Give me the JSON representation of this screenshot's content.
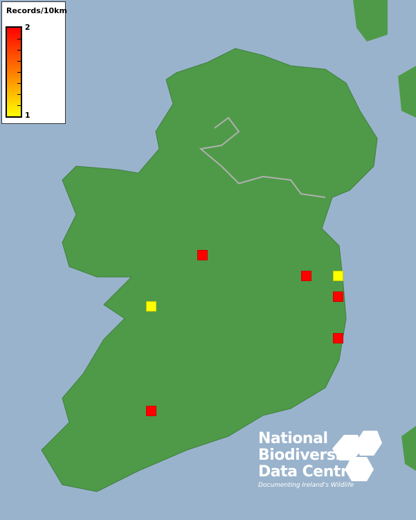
{
  "legend": {
    "title": "Records/10km",
    "max_label": "2",
    "min_label": "1",
    "colors": {
      "max": "#ff0000",
      "min": "#ffff00"
    }
  },
  "records": [
    {
      "value": 2,
      "color": "#ff0000"
    },
    {
      "value": 2,
      "color": "#ff0000"
    },
    {
      "value": 2,
      "color": "#ff0000"
    },
    {
      "value": 2,
      "color": "#ff0000"
    },
    {
      "value": 2,
      "color": "#ff0000"
    },
    {
      "value": 1,
      "color": "#ffff00"
    },
    {
      "value": 1,
      "color": "#ffff00"
    }
  ],
  "logo": {
    "line1": "National",
    "line2": "Biodiversity",
    "line3": "Data Centre",
    "tagline": "Documenting Ireland's Wildlife"
  },
  "colors": {
    "sea": "#9ab3cc",
    "land": "#4f9a48"
  }
}
